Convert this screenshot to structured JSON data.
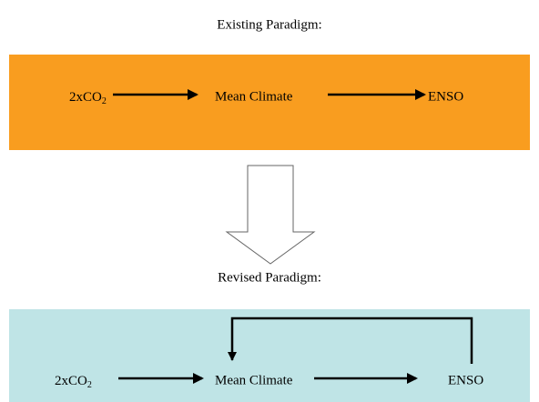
{
  "existing": {
    "title": "Existing Paradigm:",
    "nodes": [
      {
        "main": "2xCO",
        "sub": "2"
      },
      {
        "main": "Mean Climate"
      },
      {
        "main": "ENSO"
      }
    ]
  },
  "revised": {
    "title": "Revised Paradigm:",
    "nodes": [
      {
        "main": "2xCO",
        "sub": "2"
      },
      {
        "main": "Mean Climate"
      },
      {
        "main": "ENSO"
      }
    ]
  }
}
